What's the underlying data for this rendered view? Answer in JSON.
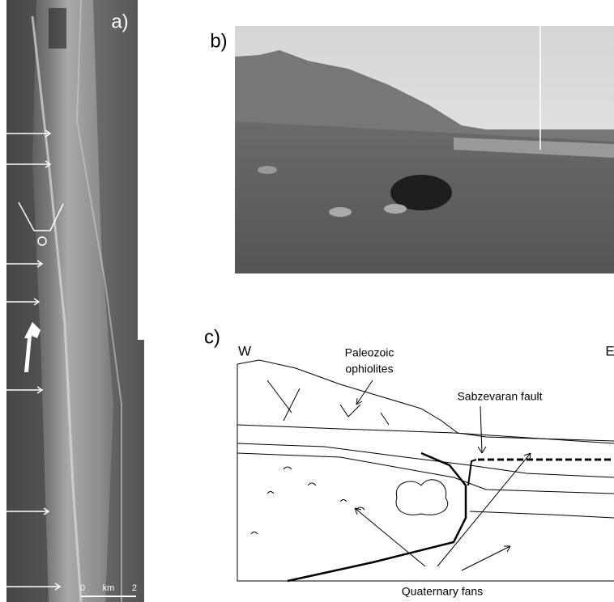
{
  "panels": {
    "a": {
      "label": "a)",
      "scale_bar": {
        "start": "0",
        "unit": "km",
        "end": "2"
      }
    },
    "b": {
      "label": "b)"
    },
    "c": {
      "label": "c)",
      "west": "W",
      "east": "E",
      "ophiolites_label": [
        "Paleozoic",
        "ophiolites"
      ],
      "fault_label": "Sabzevaran fault",
      "fans_label": "Quaternary fans"
    }
  }
}
